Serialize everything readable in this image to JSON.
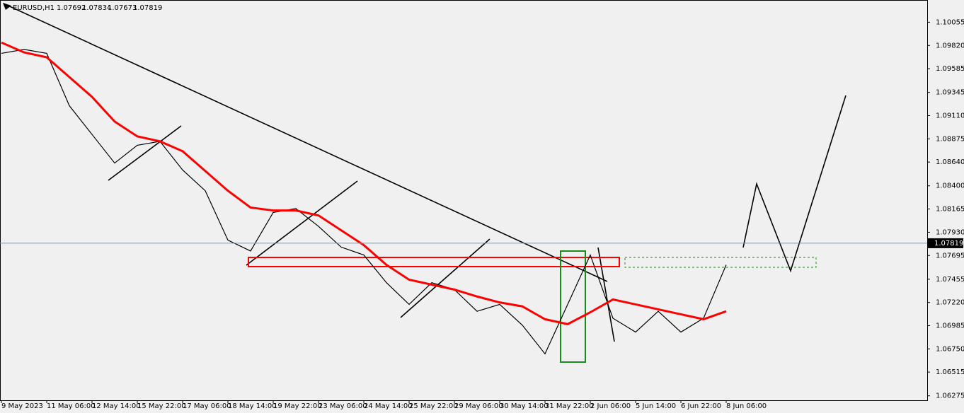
{
  "chart_data": {
    "type": "line",
    "symbol": "EURUSD,H1",
    "ohlc": [
      1.07692,
      1.07834,
      1.07673,
      1.07819
    ],
    "last_price": 1.07819,
    "categories": [
      "9 May 2023",
      null,
      "11 May 06:00",
      null,
      "12 May 14:00",
      null,
      "15 May 22:00",
      null,
      "17 May 06:00",
      null,
      "18 May 14:00",
      null,
      "19 May 22:00",
      null,
      "23 May 06:00",
      null,
      "24 May 14:00",
      null,
      "25 May 22:00",
      null,
      "29 May 06:00",
      null,
      "30 May 14:00",
      null,
      "31 May 22:00",
      null,
      "2 Jun 06:00",
      null,
      "5 Jun 14:00",
      null,
      "6 Jun 22:00",
      null,
      "8 Jun 06:00",
      null,
      null,
      null,
      null,
      null,
      null,
      null,
      null
    ],
    "series": [
      {
        "color": "#000000",
        "values": [
          1.0974,
          1.0978,
          1.0974,
          1.0921,
          1.0892,
          1.0863,
          1.0881,
          1.0885,
          1.0856,
          1.0835,
          1.0785,
          1.0774,
          1.0813,
          1.0817,
          1.0799,
          1.0778,
          1.077,
          1.0742,
          1.072,
          1.0742,
          1.0735,
          1.0713,
          1.072,
          1.0699,
          1.067,
          1.072,
          1.077,
          1.0706,
          1.0692,
          1.0713,
          1.0692,
          1.0706,
          1.076,
          null,
          null,
          null,
          null,
          null,
          null,
          null,
          null
        ]
      },
      {
        "color": "#ff0000",
        "values": [
          1.0985,
          1.0975,
          1.097,
          1.095,
          1.093,
          1.0905,
          1.089,
          1.0885,
          1.0875,
          1.0855,
          1.0835,
          1.0818,
          1.0815,
          1.0815,
          1.081,
          1.0795,
          1.078,
          1.076,
          1.0745,
          1.074,
          1.0735,
          1.0728,
          1.0722,
          1.0718,
          1.0705,
          1.07,
          1.0712,
          1.0725,
          1.072,
          1.0715,
          1.071,
          1.0705,
          1.0713,
          null,
          null,
          null,
          null,
          null,
          null,
          null,
          null
        ]
      }
    ],
    "ylim": [
      1.0623,
      1.1028
    ],
    "yticks": [
      1.10055,
      {
        "value": 1.0982,
        "label": "1.09820"
      },
      1.09585,
      1.09345,
      {
        "value": 1.0911,
        "label": "1.09110"
      },
      1.08875,
      {
        "value": 1.0864,
        "label": "1.08640"
      },
      {
        "value": 1.084,
        "label": "1.08400"
      },
      1.08165,
      {
        "value": 1.0793,
        "label": "1.07930"
      },
      1.07695,
      1.07455,
      {
        "value": 1.0722,
        "label": "1.07220"
      },
      1.06985,
      {
        "value": 1.0675,
        "label": "1.06750"
      },
      1.06515,
      1.06275
    ]
  }
}
